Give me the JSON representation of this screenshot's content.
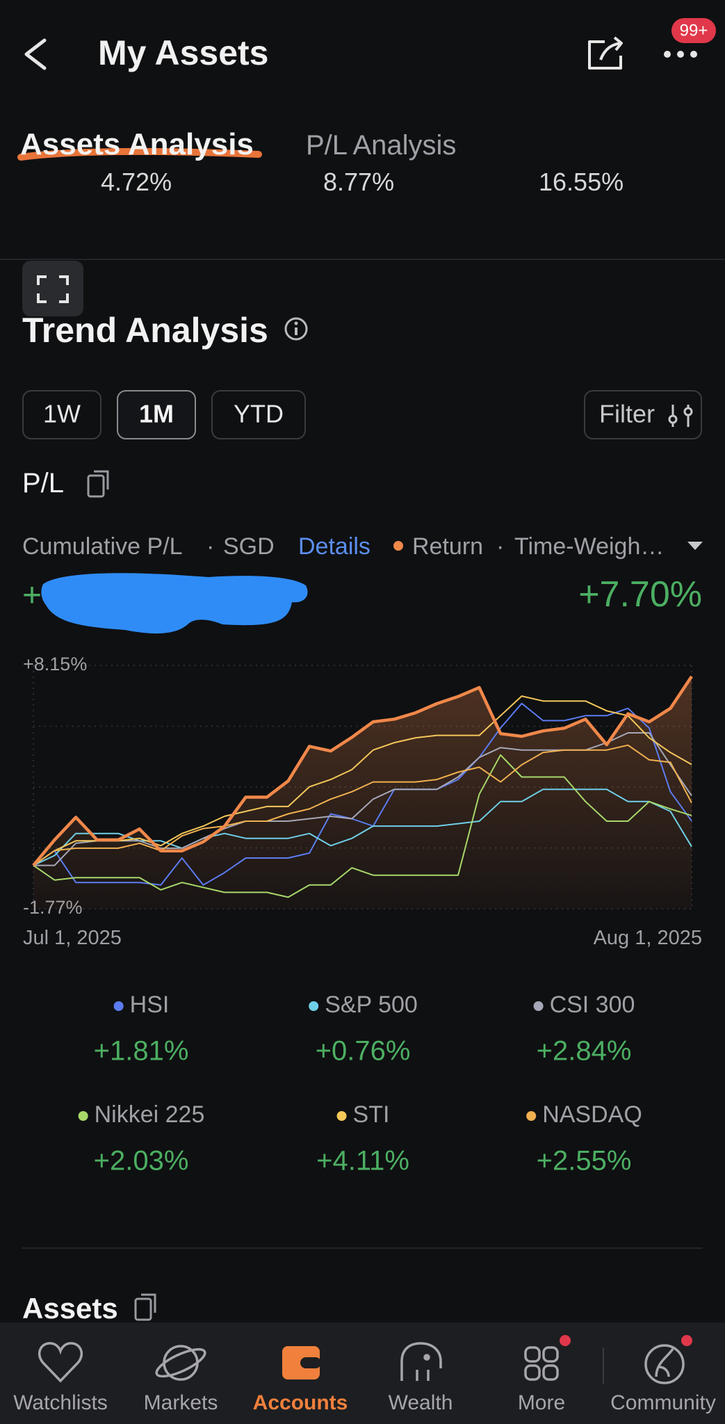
{
  "header": {
    "title": "My Assets",
    "badge": "99+"
  },
  "tabs": [
    "Assets Analysis",
    "P/L Analysis"
  ],
  "summary_partial": [
    "4.72%",
    "8.77%",
    "16.55%"
  ],
  "trend": {
    "title": "Trend Analysis",
    "periods": [
      "1W",
      "1M",
      "YTD"
    ],
    "filter": "Filter",
    "pl_label": "P/L",
    "cumulative": "Cumulative P/L",
    "currency": "SGD",
    "details": "Details",
    "separator": "·",
    "method": "Time-Weigh…",
    "amount_prefix": "+"
  },
  "chart_data": {
    "type": "line",
    "categories": [
      "Jul 1, 2025",
      null,
      null,
      null,
      null,
      null,
      null,
      null,
      null,
      null,
      null,
      null,
      null,
      null,
      null,
      null,
      null,
      null,
      null,
      null,
      null,
      null,
      null,
      null,
      null,
      null,
      null,
      null,
      null,
      null,
      null,
      "Aug 1, 2025"
    ],
    "ylim": [
      -1.77,
      8.15
    ],
    "yticks": [
      {
        "value": 8.15,
        "label": "+8.15%"
      },
      {
        "value": -1.77,
        "label": "-1.77%"
      }
    ],
    "grid": true,
    "series": [
      {
        "name": "HSI",
        "color": "#5b7cf0",
        "change_label": "+1.81%",
        "values": [
          0,
          0.6,
          -0.7,
          -0.7,
          -0.7,
          -0.7,
          -0.8,
          0.3,
          -0.8,
          -0.3,
          0.3,
          0.3,
          0.3,
          0.5,
          2.1,
          1.9,
          1.6,
          3.1,
          3.1,
          3.1,
          3.5,
          4.4,
          5.6,
          6.6,
          5.9,
          5.9,
          6.1,
          6.1,
          6.4,
          5.6,
          3.0,
          1.81
        ]
      },
      {
        "name": "S&P 500",
        "color": "#6fd0e8",
        "change_label": "+0.76%",
        "values": [
          0,
          0.4,
          1.3,
          1.3,
          1.3,
          1.0,
          1.0,
          0.7,
          1.1,
          1.3,
          1.1,
          1.1,
          1.1,
          1.3,
          0.8,
          1.1,
          1.6,
          1.6,
          1.6,
          1.6,
          1.7,
          1.8,
          2.6,
          2.6,
          3.1,
          3.1,
          3.1,
          3.1,
          2.6,
          2.6,
          2.2,
          0.76
        ]
      },
      {
        "name": "CSI 300",
        "color": "#a6a8b8",
        "change_label": "+2.84%",
        "values": [
          0,
          0,
          0.9,
          1.0,
          1.0,
          1.0,
          0.7,
          0.7,
          1.1,
          1.5,
          1.8,
          1.8,
          1.8,
          1.9,
          2.0,
          1.9,
          2.7,
          3.1,
          3.1,
          3.1,
          3.6,
          4.4,
          4.8,
          4.7,
          4.7,
          4.7,
          4.7,
          5.0,
          5.4,
          5.4,
          4.1,
          2.84
        ]
      },
      {
        "name": "Nikkei 225",
        "color": "#a8d86a",
        "change_label": "+2.03%",
        "values": [
          0,
          -0.6,
          -0.5,
          -0.5,
          -0.5,
          -0.5,
          -1.0,
          -0.7,
          -0.9,
          -1.1,
          -1.1,
          -1.1,
          -1.3,
          -0.8,
          -0.8,
          -0.1,
          -0.4,
          -0.4,
          -0.4,
          -0.4,
          -0.4,
          2.9,
          4.5,
          3.6,
          3.6,
          3.6,
          2.6,
          1.8,
          1.8,
          2.6,
          2.3,
          2.03
        ]
      },
      {
        "name": "STI",
        "color": "#f5c85a",
        "change_label": "+4.11%",
        "values": [
          0,
          0.6,
          1.0,
          1.0,
          1.0,
          1.1,
          0.8,
          1.3,
          1.6,
          2.0,
          2.2,
          2.4,
          2.4,
          3.2,
          3.5,
          3.9,
          4.7,
          5.0,
          5.2,
          5.3,
          5.3,
          5.3,
          6.1,
          6.9,
          6.7,
          6.7,
          6.7,
          6.3,
          6.1,
          5.2,
          4.6,
          4.11
        ]
      },
      {
        "name": "NASDAQ",
        "color": "#f0b050",
        "change_label": "+2.55%",
        "values": [
          0,
          0.6,
          0.7,
          0.7,
          0.7,
          0.9,
          0.6,
          1.2,
          1.5,
          1.6,
          1.8,
          1.8,
          2.1,
          2.3,
          2.7,
          3.0,
          3.4,
          3.4,
          3.4,
          3.5,
          3.8,
          4.0,
          3.4,
          4.1,
          4.6,
          4.7,
          4.7,
          4.7,
          4.9,
          4.3,
          4.2,
          2.55
        ]
      },
      {
        "name": "Return",
        "color": "#f0884a",
        "change_label": "+7.70%",
        "values": [
          0,
          1.04,
          1.96,
          1.04,
          1.04,
          1.48,
          0.59,
          0.59,
          0.96,
          1.59,
          2.78,
          2.78,
          3.44,
          4.85,
          4.66,
          5.22,
          5.85,
          5.96,
          6.22,
          6.59,
          6.88,
          7.25,
          5.37,
          5.26,
          5.48,
          5.59,
          5.96,
          4.92,
          6.18,
          5.85,
          6.4,
          7.7
        ]
      }
    ]
  },
  "assets": {
    "title": "Assets"
  },
  "nav": [
    "Watchlists",
    "Markets",
    "Accounts",
    "Wealth",
    "More",
    "Community"
  ]
}
